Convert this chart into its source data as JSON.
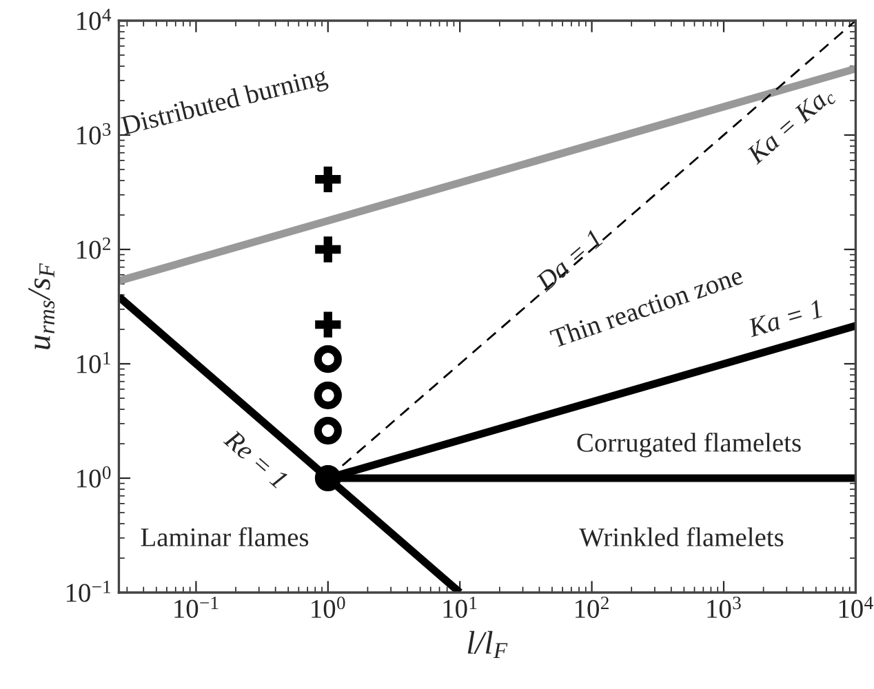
{
  "chart_data": {
    "type": "line",
    "xlabel": "l/l$_{F}$",
    "ylabel": "u$_{rms}$/s$_{F}$",
    "log": "xy",
    "grid": false,
    "legend": false,
    "xlim": [
      0.026,
      10000
    ],
    "ylim": [
      0.1,
      10000
    ],
    "xticks": [
      {
        "value": 0.1,
        "label": "10$^{−1}$"
      },
      {
        "value": 1,
        "label": "10$^{0}$"
      },
      {
        "value": 10,
        "label": "10$^{1}$"
      },
      {
        "value": 100,
        "label": "10$^{2}$"
      },
      {
        "value": 1000,
        "label": "10$^{3}$"
      },
      {
        "value": 10000,
        "label": "10$^{4}$"
      }
    ],
    "yticks": [
      {
        "value": 0.1,
        "label": "10$^{−1}$"
      },
      {
        "value": 1,
        "label": "10$^{0}$"
      },
      {
        "value": 10,
        "label": "10$^{1}$"
      },
      {
        "value": 100,
        "label": "10$^{2}$"
      },
      {
        "value": 1000,
        "label": "10$^{3}$"
      },
      {
        "value": 10000,
        "label": "10$^{4}$"
      }
    ],
    "series": [
      {
        "type": "line",
        "color": "#999999",
        "line_style": "solid",
        "marker": "none",
        "x": [
          0.026,
          10000
        ],
        "values": [
          53,
          3800
        ]
      },
      {
        "type": "line",
        "color": "#000000",
        "line_style": "solid",
        "marker": "none",
        "x": [
          0.026,
          10
        ],
        "values": [
          38.5,
          0.1
        ]
      },
      {
        "type": "line",
        "color": "#000000",
        "line_style": "dashed",
        "marker": "none",
        "x": [
          1,
          10000
        ],
        "values": [
          1,
          10000
        ]
      },
      {
        "type": "line",
        "color": "#000000",
        "line_style": "solid",
        "marker": "none",
        "x": [
          1,
          10000
        ],
        "values": [
          1,
          21.5
        ]
      },
      {
        "type": "line",
        "color": "#000000",
        "line_style": "solid",
        "marker": "none",
        "x": [
          1,
          10000
        ],
        "values": [
          1,
          1
        ]
      },
      {
        "type": "scatter",
        "color": "#000000",
        "marker": "cross",
        "x": [
          1,
          1,
          1
        ],
        "values": [
          410,
          100,
          22
        ]
      },
      {
        "type": "scatter",
        "color": "#000000",
        "marker": "circle",
        "x": [
          1,
          1,
          1
        ],
        "values": [
          11,
          5.3,
          2.6
        ]
      },
      {
        "type": "scatter",
        "color": "#000000",
        "marker": "circle",
        "x": [
          1
        ],
        "values": [
          1
        ]
      }
    ],
    "annotations": [
      "Distributed burning",
      "Thin reaction zone",
      "Corrugated flamelets",
      "Wrinkled flamelets",
      "Laminar flames",
      "Re = 1",
      "Da = 1",
      "Ka = 1",
      "Ka = Ka$_{c}$"
    ]
  }
}
